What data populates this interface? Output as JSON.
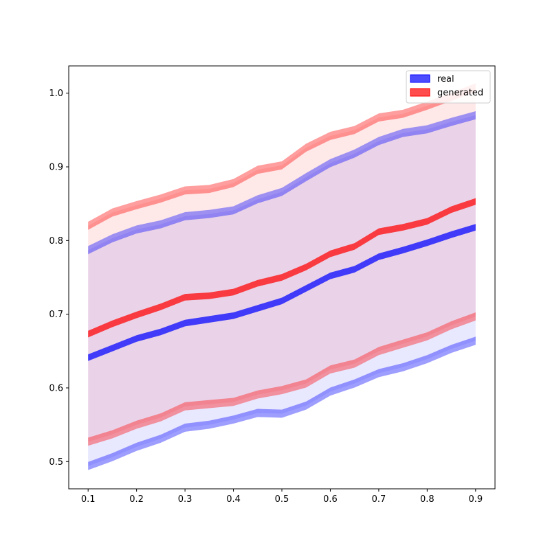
{
  "chart_data": {
    "type": "area",
    "title": "",
    "xlabel": "",
    "ylabel": "",
    "xlim": [
      0.06,
      0.94
    ],
    "ylim": [
      0.463,
      1.037
    ],
    "x_ticks": [
      "0.1",
      "0.2",
      "0.3",
      "0.4",
      "0.5",
      "0.6",
      "0.7",
      "0.8",
      "0.9"
    ],
    "y_ticks": [
      "0.5",
      "0.6",
      "0.7",
      "0.8",
      "0.9",
      "1.0"
    ],
    "grid": false,
    "legend_position": "top-right",
    "x": [
      0.1,
      0.15,
      0.2,
      0.25,
      0.3,
      0.35,
      0.4,
      0.45,
      0.5,
      0.55,
      0.6,
      0.65,
      0.7,
      0.75,
      0.8,
      0.85,
      0.9
    ],
    "series": [
      {
        "name": "real",
        "color": "#0000ff",
        "mean": [
          0.641,
          0.654,
          0.667,
          0.676,
          0.688,
          0.693,
          0.698,
          0.708,
          0.718,
          0.735,
          0.752,
          0.761,
          0.778,
          0.787,
          0.797,
          0.808,
          0.818
        ],
        "upper": [
          0.787,
          0.803,
          0.815,
          0.822,
          0.833,
          0.836,
          0.841,
          0.856,
          0.866,
          0.886,
          0.905,
          0.918,
          0.935,
          0.946,
          0.951,
          0.961,
          0.97
        ],
        "lower": [
          0.494,
          0.506,
          0.52,
          0.531,
          0.546,
          0.55,
          0.557,
          0.566,
          0.565,
          0.576,
          0.595,
          0.606,
          0.62,
          0.628,
          0.639,
          0.653,
          0.664
        ]
      },
      {
        "name": "generated",
        "color": "#ff0000",
        "mean": [
          0.673,
          0.687,
          0.699,
          0.71,
          0.723,
          0.725,
          0.73,
          0.742,
          0.75,
          0.764,
          0.782,
          0.792,
          0.812,
          0.818,
          0.826,
          0.842,
          0.853
        ],
        "upper": [
          0.82,
          0.838,
          0.848,
          0.857,
          0.868,
          0.87,
          0.878,
          0.896,
          0.902,
          0.926,
          0.942,
          0.95,
          0.967,
          0.972,
          0.983,
          0.995,
          1.008
        ],
        "lower": [
          0.527,
          0.537,
          0.55,
          0.56,
          0.575,
          0.578,
          0.581,
          0.591,
          0.597,
          0.606,
          0.625,
          0.633,
          0.65,
          0.66,
          0.67,
          0.685,
          0.697
        ]
      }
    ]
  }
}
